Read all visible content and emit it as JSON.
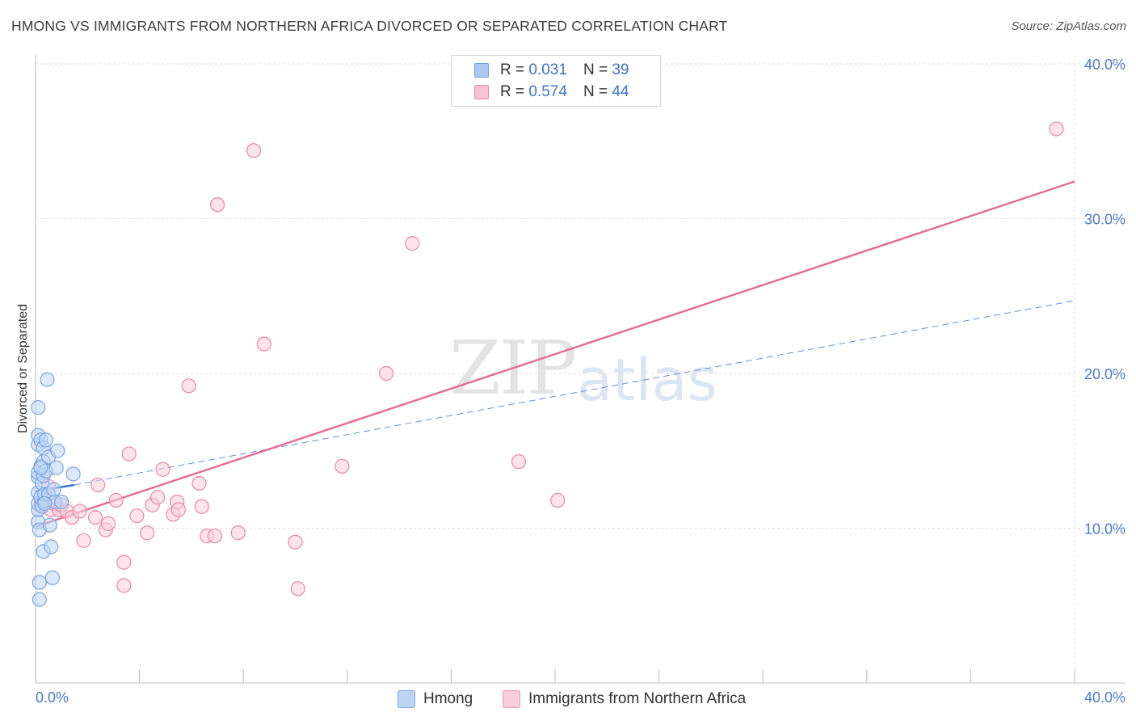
{
  "title": "HMONG VS IMMIGRANTS FROM NORTHERN AFRICA DIVORCED OR SEPARATED CORRELATION CHART",
  "source": "Source: ZipAtlas.com",
  "watermark": {
    "zip": "ZIP",
    "atlas": "atlas"
  },
  "legend": {
    "r_label": "R =",
    "n_label": "N =",
    "rows": [
      {
        "r": "0.031",
        "n": "39",
        "color": "#a9c9f2",
        "border": "#6f9ee0"
      },
      {
        "r": "0.574",
        "n": "44",
        "color": "#f7c2d3",
        "border": "#e88aa8"
      }
    ]
  },
  "bottom_legend": [
    {
      "label": "Hmong",
      "color": "#bcd5f5",
      "border": "#7ba6e2"
    },
    {
      "label": "Immigrants from Northern Africa",
      "color": "#f9cddb",
      "border": "#e996b1"
    }
  ],
  "chart_data": {
    "type": "scatter",
    "title": "HMONG VS IMMIGRANTS FROM NORTHERN AFRICA DIVORCED OR SEPARATED CORRELATION CHART",
    "xlabel": "",
    "ylabel": "Divorced or Separated",
    "xlim": [
      0,
      40
    ],
    "ylim": [
      0,
      40
    ],
    "x_tick_labels": [
      "0.0%",
      "40.0%"
    ],
    "y_ticks": [
      10,
      20,
      30,
      40
    ],
    "y_tick_labels": [
      "10.0%",
      "20.0%",
      "30.0%",
      "40.0%"
    ],
    "grid": true,
    "series": [
      {
        "name": "Hmong",
        "color": "#7ba6e2",
        "fill": "#bcd5f5",
        "points": [
          [
            0.1,
            10.4
          ],
          [
            0.1,
            11.2
          ],
          [
            0.1,
            11.6
          ],
          [
            0.1,
            12.3
          ],
          [
            0.1,
            13.3
          ],
          [
            0.1,
            13.6
          ],
          [
            0.1,
            15.4
          ],
          [
            0.1,
            16.0
          ],
          [
            0.1,
            17.8
          ],
          [
            0.15,
            6.5
          ],
          [
            0.15,
            5.4
          ],
          [
            0.15,
            9.9
          ],
          [
            0.2,
            12.0
          ],
          [
            0.2,
            14.0
          ],
          [
            0.2,
            15.7
          ],
          [
            0.25,
            11.4
          ],
          [
            0.25,
            12.9
          ],
          [
            0.3,
            13.4
          ],
          [
            0.3,
            14.3
          ],
          [
            0.3,
            15.2
          ],
          [
            0.3,
            8.5
          ],
          [
            0.35,
            11.8
          ],
          [
            0.35,
            12.2
          ],
          [
            0.4,
            13.7
          ],
          [
            0.4,
            15.7
          ],
          [
            0.45,
            19.6
          ],
          [
            0.5,
            14.6
          ],
          [
            0.5,
            12.2
          ],
          [
            0.55,
            10.2
          ],
          [
            0.6,
            8.8
          ],
          [
            0.65,
            6.8
          ],
          [
            0.7,
            12.5
          ],
          [
            0.75,
            11.7
          ],
          [
            0.8,
            13.9
          ],
          [
            0.85,
            15.0
          ],
          [
            1.0,
            11.7
          ],
          [
            1.45,
            13.5
          ],
          [
            0.2,
            13.9
          ],
          [
            0.35,
            11.6
          ]
        ],
        "trend_solid": [
          [
            0.0,
            12.4
          ],
          [
            1.5,
            12.8
          ]
        ],
        "trend_dashed": [
          [
            1.5,
            12.8
          ],
          [
            40.0,
            24.7
          ]
        ]
      },
      {
        "name": "Immigrants from Northern Africa",
        "color": "#e886a6",
        "fill": "#f9cddb",
        "points": [
          [
            0.2,
            11.5
          ],
          [
            0.3,
            11.7
          ],
          [
            0.5,
            12.7
          ],
          [
            0.6,
            11.2
          ],
          [
            0.7,
            11.6
          ],
          [
            0.9,
            11.2
          ],
          [
            1.0,
            11.5
          ],
          [
            1.2,
            11.1
          ],
          [
            1.4,
            10.7
          ],
          [
            1.7,
            11.1
          ],
          [
            1.85,
            9.2
          ],
          [
            2.3,
            10.7
          ],
          [
            2.4,
            12.8
          ],
          [
            2.7,
            9.9
          ],
          [
            2.8,
            10.3
          ],
          [
            3.1,
            11.8
          ],
          [
            3.4,
            7.8
          ],
          [
            3.4,
            6.3
          ],
          [
            3.6,
            14.8
          ],
          [
            3.9,
            10.8
          ],
          [
            4.3,
            9.7
          ],
          [
            4.5,
            11.5
          ],
          [
            4.7,
            12.0
          ],
          [
            4.9,
            13.8
          ],
          [
            5.3,
            10.9
          ],
          [
            5.45,
            11.7
          ],
          [
            5.5,
            11.2
          ],
          [
            5.9,
            19.2
          ],
          [
            6.3,
            12.9
          ],
          [
            6.4,
            11.4
          ],
          [
            6.6,
            9.5
          ],
          [
            6.9,
            9.5
          ],
          [
            7.0,
            30.9
          ],
          [
            7.8,
            9.7
          ],
          [
            8.4,
            34.4
          ],
          [
            8.8,
            21.9
          ],
          [
            10.0,
            9.1
          ],
          [
            10.1,
            6.1
          ],
          [
            11.8,
            14.0
          ],
          [
            13.5,
            20.0
          ],
          [
            14.5,
            28.4
          ],
          [
            18.6,
            14.3
          ],
          [
            20.1,
            11.8
          ],
          [
            39.3,
            35.8
          ]
        ],
        "trend_solid": [
          [
            0.0,
            10.1
          ],
          [
            40.0,
            32.4
          ]
        ]
      }
    ]
  }
}
